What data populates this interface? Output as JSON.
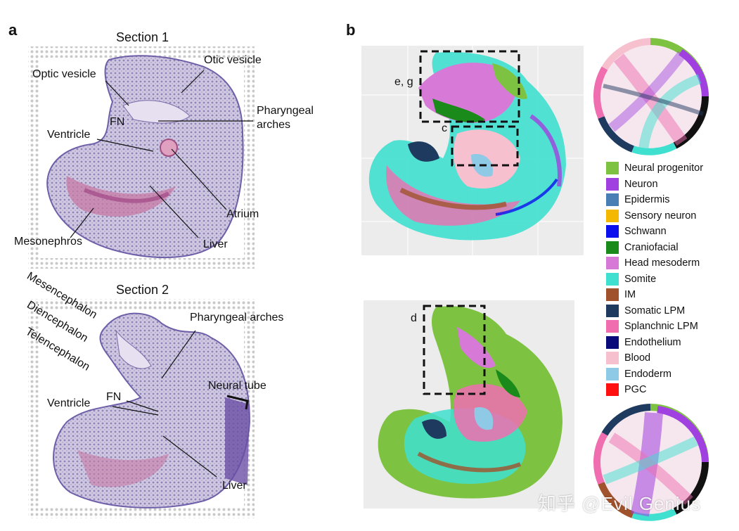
{
  "panel_a": {
    "letter": "a",
    "section1": {
      "title": "Section 1",
      "labels": {
        "optic_vesicle": "Optic vesicle",
        "otic_vesicle": "Otic vesicle",
        "fn": "FN",
        "pharyngeal_line1": "Pharyngeal",
        "pharyngeal_line2": "arches",
        "ventricle": "Ventricle",
        "atrium": "Atrium",
        "mesonephros": "Mesonephros",
        "liver": "Liver"
      }
    },
    "section2": {
      "title": "Section 2",
      "labels": {
        "mesencephalon": "Mesencephalon",
        "diencephalon": "Diencephalon",
        "telencephalon": "Telencephalon",
        "pharyngeal_arches": "Pharyngeal arches",
        "neural_tube": "Neural tube",
        "fn": "FN",
        "ventricle": "Ventricle",
        "liver": "Liver"
      }
    }
  },
  "panel_b": {
    "letter": "b",
    "box_labels": {
      "eg": "e, g",
      "c": "c",
      "d": "d"
    },
    "legend": [
      {
        "label": "Neural progenitor",
        "color": "#7ec242"
      },
      {
        "label": "Neuron",
        "color": "#a040e0"
      },
      {
        "label": "Epidermis",
        "color": "#4a7fb5"
      },
      {
        "label": "Sensory neuron",
        "color": "#f5b800"
      },
      {
        "label": "Schwann",
        "color": "#0a10ee"
      },
      {
        "label": "Craniofacial",
        "color": "#1a8a1a"
      },
      {
        "label": "Head mesoderm",
        "color": "#d77ad7"
      },
      {
        "label": "Somite",
        "color": "#40e0d0"
      },
      {
        "label": "IM",
        "color": "#a0522d"
      },
      {
        "label": "Somatic LPM",
        "color": "#1f3a5f"
      },
      {
        "label": "Splanchnic LPM",
        "color": "#f06eb0"
      },
      {
        "label": "Endothelium",
        "color": "#0a0a7a"
      },
      {
        "label": "Blood",
        "color": "#f7c0cf"
      },
      {
        "label": "Endoderm",
        "color": "#8ecae6"
      },
      {
        "label": "PGC",
        "color": "#ff1010"
      }
    ]
  },
  "watermark": "知乎 @Evil Genius"
}
